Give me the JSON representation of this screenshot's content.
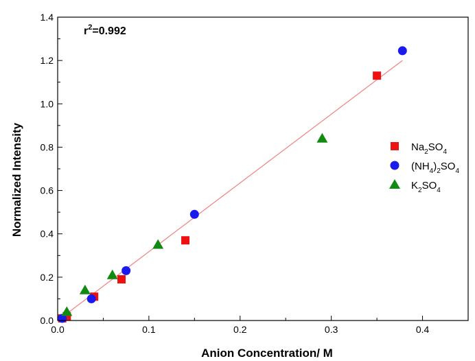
{
  "chart_data": {
    "type": "scatter",
    "title": "",
    "xlabel": "Anion Concentration/ M",
    "ylabel": "Normalized Intensity",
    "xlim": [
      0.0,
      0.45
    ],
    "ylim": [
      0.0,
      1.4
    ],
    "xticks": [
      "0.0",
      "0.1",
      "0.2",
      "0.3",
      "0.4"
    ],
    "yticks": [
      "0.0",
      "0.2",
      "0.4",
      "0.6",
      "0.8",
      "1.0",
      "1.2",
      "1.4"
    ],
    "annotation": {
      "prefix": "r",
      "sup": "2",
      "rest": "=0.992"
    },
    "fit_line": {
      "x": [
        0.0,
        0.378
      ],
      "y": [
        0.0,
        1.2
      ],
      "color": "#f08080"
    },
    "legend_position": "right",
    "series": [
      {
        "name": "Na2SO4",
        "label_parts": [
          [
            "Na",
            "n"
          ],
          [
            "2",
            "sub"
          ],
          [
            "SO",
            "n"
          ],
          [
            "4",
            "sub"
          ]
        ],
        "marker": "square",
        "color": "#ee1111",
        "x": [
          0.005,
          0.01,
          0.04,
          0.07,
          0.14,
          0.35
        ],
        "y": [
          0.01,
          0.02,
          0.11,
          0.19,
          0.37,
          1.13
        ]
      },
      {
        "name": "(NH4)2SO4",
        "label_parts": [
          [
            "(NH",
            "n"
          ],
          [
            "4",
            "sub"
          ],
          [
            ")",
            "n"
          ],
          [
            "2",
            "sub"
          ],
          [
            "SO",
            "n"
          ],
          [
            "4",
            "sub"
          ]
        ],
        "marker": "circle",
        "color": "#1a1aee",
        "x": [
          0.005,
          0.037,
          0.075,
          0.15,
          0.378
        ],
        "y": [
          0.01,
          0.1,
          0.23,
          0.49,
          1.245
        ]
      },
      {
        "name": "K2SO4",
        "label_parts": [
          [
            "K",
            "n"
          ],
          [
            "2",
            "sub"
          ],
          [
            "SO",
            "n"
          ],
          [
            "4",
            "sub"
          ]
        ],
        "marker": "triangle",
        "color": "#128a12",
        "x": [
          0.01,
          0.03,
          0.06,
          0.11,
          0.29
        ],
        "y": [
          0.04,
          0.14,
          0.21,
          0.35,
          0.84
        ]
      }
    ]
  }
}
